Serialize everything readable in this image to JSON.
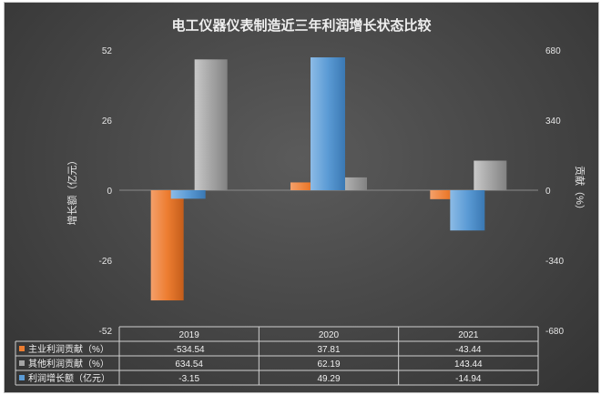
{
  "chart_data": {
    "type": "bar",
    "title": "电工仪器仪表制造近三年利润增长状态比较",
    "categories": [
      "2019",
      "2020",
      "2021"
    ],
    "ylabel_left": "增长额（亿元）",
    "ylabel_right": "贡献（%）",
    "ylim_left": [
      -52,
      52
    ],
    "ylim_right": [
      -680,
      680
    ],
    "yticks_left": [
      "52",
      "26",
      "0",
      "-26",
      "-52"
    ],
    "yticks_right": [
      "680",
      "340",
      "0",
      "-340",
      "-680"
    ],
    "grid": false,
    "legend": "data-table",
    "series": [
      {
        "name": "主业利润贡献（%）",
        "axis": "right",
        "color": "#ed7d31",
        "values": [
          -534.54,
          37.81,
          -43.44
        ],
        "labels": [
          "-534.54",
          "37.81",
          "-43.44"
        ]
      },
      {
        "name": "其他利润贡献（%）",
        "axis": "right",
        "color": "#a5a5a5",
        "values": [
          634.54,
          62.19,
          143.44
        ],
        "labels": [
          "634.54",
          "62.19",
          "143.44"
        ]
      },
      {
        "name": "利润增长额（亿元）",
        "axis": "left",
        "color": "#5b9bd5",
        "values": [
          -3.15,
          49.29,
          -14.94
        ],
        "labels": [
          "-3.15",
          "49.29",
          "-14.94"
        ]
      }
    ]
  }
}
